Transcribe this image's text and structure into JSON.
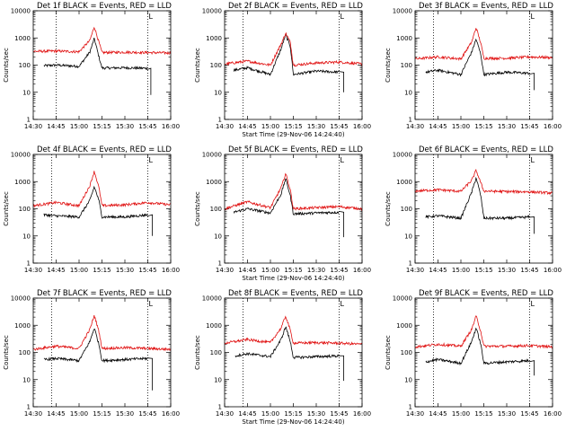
{
  "window": {
    "background": "#ffffff",
    "axis_color": "#000000",
    "events_color": "#000000",
    "lld_color": "#e01010"
  },
  "chart_data": [
    {
      "type": "line",
      "title": "Det 1f BLACK = Events, RED = LLD",
      "xlabel": "Start Time (29-Nov-06 14:24:40)",
      "ylabel": "Counts/sec",
      "show_xlabel": false,
      "yscale": "log",
      "ylim": [
        1,
        10000
      ],
      "xlim": [
        "14:30",
        "16:00"
      ],
      "xticks": [
        "14:30",
        "14:45",
        "15:00",
        "15:15",
        "15:30",
        "15:45",
        "16:00"
      ],
      "yticks": [
        "1",
        "10",
        "100",
        "1000",
        "10000"
      ],
      "markers": [
        {
          "x": "14:45",
          "label": ""
        },
        {
          "x": "15:45",
          "label": "L"
        }
      ],
      "series": [
        {
          "name": "Events",
          "color": "#000000",
          "start": "14:37",
          "end": "15:47",
          "base": 85,
          "peak": 950,
          "dip": 8,
          "x": [
            "14:37",
            "14:45",
            "15:00",
            "15:07",
            "15:10",
            "15:13",
            "15:15",
            "15:30",
            "15:45",
            "15:47"
          ],
          "y": [
            95,
            100,
            90,
            300,
            950,
            200,
            78,
            80,
            76,
            8
          ]
        },
        {
          "name": "LLD",
          "color": "#e01010",
          "start": "14:30",
          "end": "16:00",
          "base": 300,
          "peak": 2600,
          "x": [
            "14:30",
            "14:45",
            "15:00",
            "15:07",
            "15:10",
            "15:13",
            "15:15",
            "15:30",
            "15:45",
            "16:00"
          ],
          "y": [
            320,
            330,
            310,
            800,
            2600,
            700,
            290,
            300,
            290,
            280
          ]
        }
      ]
    },
    {
      "type": "line",
      "title": "Det 2f BLACK = Events, RED = LLD",
      "xlabel": "Start Time (29-Nov-06 14:24:40)",
      "ylabel": "Counts/sec",
      "show_xlabel": true,
      "yscale": "log",
      "ylim": [
        1,
        10000
      ],
      "xlim": [
        "14:30",
        "16:00"
      ],
      "xticks": [
        "14:30",
        "14:45",
        "15:00",
        "15:15",
        "15:30",
        "15:45",
        "16:00"
      ],
      "yticks": [
        "1",
        "10",
        "100",
        "1000",
        "10000"
      ],
      "markers": [
        {
          "x": "14:42",
          "label": ""
        },
        {
          "x": "15:45",
          "label": "L"
        }
      ],
      "series": [
        {
          "name": "Events",
          "color": "#000000",
          "start": "14:36",
          "end": "15:48",
          "base": 60,
          "peak": 1300,
          "dip": 10,
          "x": [
            "14:36",
            "14:45",
            "15:00",
            "15:07",
            "15:10",
            "15:13",
            "15:15",
            "15:30",
            "15:45",
            "15:48"
          ],
          "y": [
            65,
            80,
            45,
            400,
            1300,
            500,
            45,
            60,
            55,
            10
          ]
        },
        {
          "name": "LLD",
          "color": "#e01010",
          "start": "14:30",
          "end": "16:00",
          "base": 120,
          "peak": 1500,
          "x": [
            "14:30",
            "14:45",
            "15:00",
            "15:07",
            "15:10",
            "15:13",
            "15:15",
            "15:30",
            "15:45",
            "16:00"
          ],
          "y": [
            110,
            140,
            100,
            600,
            1500,
            700,
            100,
            120,
            130,
            110
          ]
        }
      ]
    },
    {
      "type": "line",
      "title": "Det 3f BLACK = Events, RED = LLD",
      "xlabel": "Start Time (29-Nov-06 14:24:40)",
      "ylabel": "Counts/sec",
      "show_xlabel": false,
      "yscale": "log",
      "ylim": [
        1,
        10000
      ],
      "xlim": [
        "14:30",
        "16:00"
      ],
      "xticks": [
        "14:30",
        "14:45",
        "15:00",
        "15:15",
        "15:30",
        "15:45",
        "16:00"
      ],
      "yticks": [
        "1",
        "10",
        "100",
        "1000",
        "10000"
      ],
      "markers": [
        {
          "x": "14:42",
          "label": ""
        },
        {
          "x": "15:45",
          "label": "L"
        }
      ],
      "series": [
        {
          "name": "Events",
          "color": "#000000",
          "start": "14:37",
          "end": "15:48",
          "base": 50,
          "peak": 900,
          "dip": 12,
          "x": [
            "14:37",
            "14:45",
            "15:00",
            "15:07",
            "15:10",
            "15:13",
            "15:15",
            "15:30",
            "15:45",
            "15:48"
          ],
          "y": [
            55,
            65,
            45,
            300,
            900,
            250,
            45,
            55,
            50,
            12
          ]
        },
        {
          "name": "LLD",
          "color": "#e01010",
          "start": "14:30",
          "end": "16:00",
          "base": 180,
          "peak": 2400,
          "x": [
            "14:30",
            "14:45",
            "15:00",
            "15:07",
            "15:10",
            "15:13",
            "15:15",
            "15:30",
            "15:45",
            "16:00"
          ],
          "y": [
            170,
            200,
            170,
            700,
            2400,
            650,
            180,
            180,
            200,
            190
          ]
        }
      ]
    },
    {
      "type": "line",
      "title": "Det 4f BLACK = Events, RED = LLD",
      "xlabel": "Start Time (29-Nov-06 14:24:40)",
      "ylabel": "Counts/sec",
      "show_xlabel": false,
      "yscale": "log",
      "ylim": [
        1,
        10000
      ],
      "xlim": [
        "14:30",
        "16:00"
      ],
      "xticks": [
        "14:30",
        "14:45",
        "15:00",
        "15:15",
        "15:30",
        "15:45",
        "16:00"
      ],
      "yticks": [
        "1",
        "10",
        "100",
        "1000",
        "10000"
      ],
      "markers": [
        {
          "x": "14:42",
          "label": ""
        },
        {
          "x": "15:45",
          "label": "L"
        }
      ],
      "series": [
        {
          "name": "Events",
          "color": "#000000",
          "start": "14:37",
          "end": "15:48",
          "base": 55,
          "peak": 650,
          "dip": 10,
          "x": [
            "14:37",
            "14:45",
            "15:00",
            "15:07",
            "15:10",
            "15:13",
            "15:15",
            "15:30",
            "15:45",
            "15:48"
          ],
          "y": [
            60,
            55,
            50,
            200,
            650,
            200,
            50,
            50,
            60,
            10
          ]
        },
        {
          "name": "LLD",
          "color": "#e01010",
          "start": "14:30",
          "end": "16:00",
          "base": 130,
          "peak": 2400,
          "x": [
            "14:30",
            "14:45",
            "15:00",
            "15:07",
            "15:10",
            "15:13",
            "15:15",
            "15:30",
            "15:45",
            "16:00"
          ],
          "y": [
            130,
            170,
            130,
            700,
            2400,
            600,
            130,
            140,
            170,
            140
          ]
        }
      ]
    },
    {
      "type": "line",
      "title": "Det 5f BLACK = Events, RED = LLD",
      "xlabel": "Start Time (29-Nov-06 14:24:40)",
      "ylabel": "Counts/sec",
      "show_xlabel": true,
      "yscale": "log",
      "ylim": [
        1,
        10000
      ],
      "xlim": [
        "14:30",
        "16:00"
      ],
      "xticks": [
        "14:30",
        "14:45",
        "15:00",
        "15:15",
        "15:30",
        "15:45",
        "16:00"
      ],
      "yticks": [
        "1",
        "10",
        "100",
        "1000",
        "10000"
      ],
      "markers": [
        {
          "x": "14:42",
          "label": ""
        },
        {
          "x": "15:45",
          "label": "L"
        }
      ],
      "series": [
        {
          "name": "Events",
          "color": "#000000",
          "start": "14:36",
          "end": "15:48",
          "base": 70,
          "peak": 1300,
          "dip": 9,
          "x": [
            "14:36",
            "14:45",
            "15:00",
            "15:07",
            "15:10",
            "15:13",
            "15:15",
            "15:30",
            "15:45",
            "15:48"
          ],
          "y": [
            75,
            100,
            70,
            350,
            1300,
            300,
            65,
            70,
            75,
            9
          ]
        },
        {
          "name": "LLD",
          "color": "#e01010",
          "start": "14:30",
          "end": "16:00",
          "base": 110,
          "peak": 2000,
          "x": [
            "14:30",
            "14:45",
            "15:00",
            "15:07",
            "15:10",
            "15:13",
            "15:15",
            "15:30",
            "15:45",
            "16:00"
          ],
          "y": [
            100,
            180,
            110,
            600,
            2000,
            500,
            100,
            110,
            120,
            100
          ]
        }
      ]
    },
    {
      "type": "line",
      "title": "Det 6f BLACK = Events, RED = LLD",
      "xlabel": "Start Time (29-Nov-06 14:24:40)",
      "ylabel": "Counts/sec",
      "show_xlabel": false,
      "yscale": "log",
      "ylim": [
        1,
        10000
      ],
      "xlim": [
        "14:30",
        "16:00"
      ],
      "xticks": [
        "14:30",
        "14:45",
        "15:00",
        "15:15",
        "15:30",
        "15:45",
        "16:00"
      ],
      "yticks": [
        "1",
        "10",
        "100",
        "1000",
        "10000"
      ],
      "markers": [
        {
          "x": "14:42",
          "label": ""
        },
        {
          "x": "15:45",
          "label": "L"
        }
      ],
      "series": [
        {
          "name": "Events",
          "color": "#000000",
          "start": "14:37",
          "end": "15:48",
          "base": 45,
          "peak": 1400,
          "dip": 12,
          "x": [
            "14:37",
            "14:45",
            "15:00",
            "15:07",
            "15:10",
            "15:13",
            "15:15",
            "15:30",
            "15:45",
            "15:48"
          ],
          "y": [
            50,
            55,
            45,
            400,
            1400,
            300,
            45,
            45,
            50,
            12
          ]
        },
        {
          "name": "LLD",
          "color": "#e01010",
          "start": "14:30",
          "end": "16:00",
          "base": 450,
          "peak": 2600,
          "x": [
            "14:30",
            "14:45",
            "15:00",
            "15:07",
            "15:10",
            "15:13",
            "15:15",
            "15:30",
            "15:45",
            "16:00"
          ],
          "y": [
            450,
            500,
            440,
            1100,
            2600,
            900,
            450,
            430,
            420,
            380
          ]
        }
      ]
    },
    {
      "type": "line",
      "title": "Det 7f BLACK = Events, RED = LLD",
      "xlabel": "Start Time (29-Nov-06 14:24:40)",
      "ylabel": "Counts/sec",
      "show_xlabel": false,
      "yscale": "log",
      "ylim": [
        1,
        10000
      ],
      "xlim": [
        "14:30",
        "16:00"
      ],
      "xticks": [
        "14:30",
        "14:45",
        "15:00",
        "15:15",
        "15:30",
        "15:45",
        "16:00"
      ],
      "yticks": [
        "1",
        "10",
        "100",
        "1000",
        "10000"
      ],
      "markers": [
        {
          "x": "14:42",
          "label": ""
        },
        {
          "x": "15:45",
          "label": "L"
        }
      ],
      "series": [
        {
          "name": "Events",
          "color": "#000000",
          "start": "14:37",
          "end": "15:48",
          "base": 55,
          "peak": 800,
          "dip": 4,
          "x": [
            "14:37",
            "14:45",
            "15:00",
            "15:07",
            "15:10",
            "15:13",
            "15:15",
            "15:30",
            "15:45",
            "15:48"
          ],
          "y": [
            55,
            60,
            50,
            250,
            800,
            200,
            50,
            55,
            60,
            4
          ]
        },
        {
          "name": "LLD",
          "color": "#e01010",
          "start": "14:30",
          "end": "16:00",
          "base": 140,
          "peak": 2300,
          "x": [
            "14:30",
            "14:45",
            "15:00",
            "15:07",
            "15:10",
            "15:13",
            "15:15",
            "15:30",
            "15:45",
            "16:00"
          ],
          "y": [
            130,
            170,
            140,
            700,
            2300,
            600,
            140,
            150,
            140,
            130
          ]
        }
      ]
    },
    {
      "type": "line",
      "title": "Det 8f BLACK = Events, RED = LLD",
      "xlabel": "Start Time (29-Nov-06 14:24:40)",
      "ylabel": "Counts/sec",
      "show_xlabel": true,
      "yscale": "log",
      "ylim": [
        1,
        10000
      ],
      "xlim": [
        "14:30",
        "16:00"
      ],
      "xticks": [
        "14:30",
        "14:45",
        "15:00",
        "15:15",
        "15:30",
        "15:45",
        "16:00"
      ],
      "yticks": [
        "1",
        "10",
        "100",
        "1000",
        "10000"
      ],
      "markers": [
        {
          "x": "14:42",
          "label": ""
        },
        {
          "x": "15:45",
          "label": "L"
        }
      ],
      "series": [
        {
          "name": "Events",
          "color": "#000000",
          "start": "14:37",
          "end": "15:48",
          "base": 70,
          "peak": 900,
          "dip": 9,
          "x": [
            "14:37",
            "14:45",
            "15:00",
            "15:07",
            "15:10",
            "15:13",
            "15:15",
            "15:30",
            "15:45",
            "15:48"
          ],
          "y": [
            75,
            90,
            70,
            300,
            900,
            250,
            65,
            70,
            75,
            9
          ]
        },
        {
          "name": "LLD",
          "color": "#e01010",
          "start": "14:30",
          "end": "16:00",
          "base": 230,
          "peak": 2200,
          "x": [
            "14:30",
            "14:45",
            "15:00",
            "15:07",
            "15:10",
            "15:13",
            "15:15",
            "15:30",
            "15:45",
            "16:00"
          ],
          "y": [
            220,
            300,
            230,
            800,
            2200,
            650,
            220,
            230,
            220,
            200
          ]
        }
      ]
    },
    {
      "type": "line",
      "title": "Det 9f BLACK = Events, RED = LLD",
      "xlabel": "Start Time (29-Nov-06 14:24:40)",
      "ylabel": "Counts/sec",
      "show_xlabel": false,
      "yscale": "log",
      "ylim": [
        1,
        10000
      ],
      "xlim": [
        "14:30",
        "16:00"
      ],
      "xticks": [
        "14:30",
        "14:45",
        "15:00",
        "15:15",
        "15:30",
        "15:45",
        "16:00"
      ],
      "yticks": [
        "1",
        "10",
        "100",
        "1000",
        "10000"
      ],
      "markers": [
        {
          "x": "14:42",
          "label": ""
        },
        {
          "x": "15:45",
          "label": "L"
        }
      ],
      "series": [
        {
          "name": "Events",
          "color": "#000000",
          "start": "14:37",
          "end": "15:48",
          "base": 45,
          "peak": 800,
          "dip": 14,
          "x": [
            "14:37",
            "14:45",
            "15:00",
            "15:07",
            "15:10",
            "15:13",
            "15:15",
            "15:30",
            "15:45",
            "15:48"
          ],
          "y": [
            45,
            55,
            40,
            250,
            800,
            200,
            40,
            45,
            50,
            14
          ]
        },
        {
          "name": "LLD",
          "color": "#e01010",
          "start": "14:30",
          "end": "16:00",
          "base": 170,
          "peak": 2200,
          "x": [
            "14:30",
            "14:45",
            "15:00",
            "15:07",
            "15:10",
            "15:13",
            "15:15",
            "15:30",
            "15:45",
            "16:00"
          ],
          "y": [
            160,
            200,
            170,
            700,
            2200,
            600,
            170,
            170,
            180,
            160
          ]
        }
      ]
    }
  ]
}
